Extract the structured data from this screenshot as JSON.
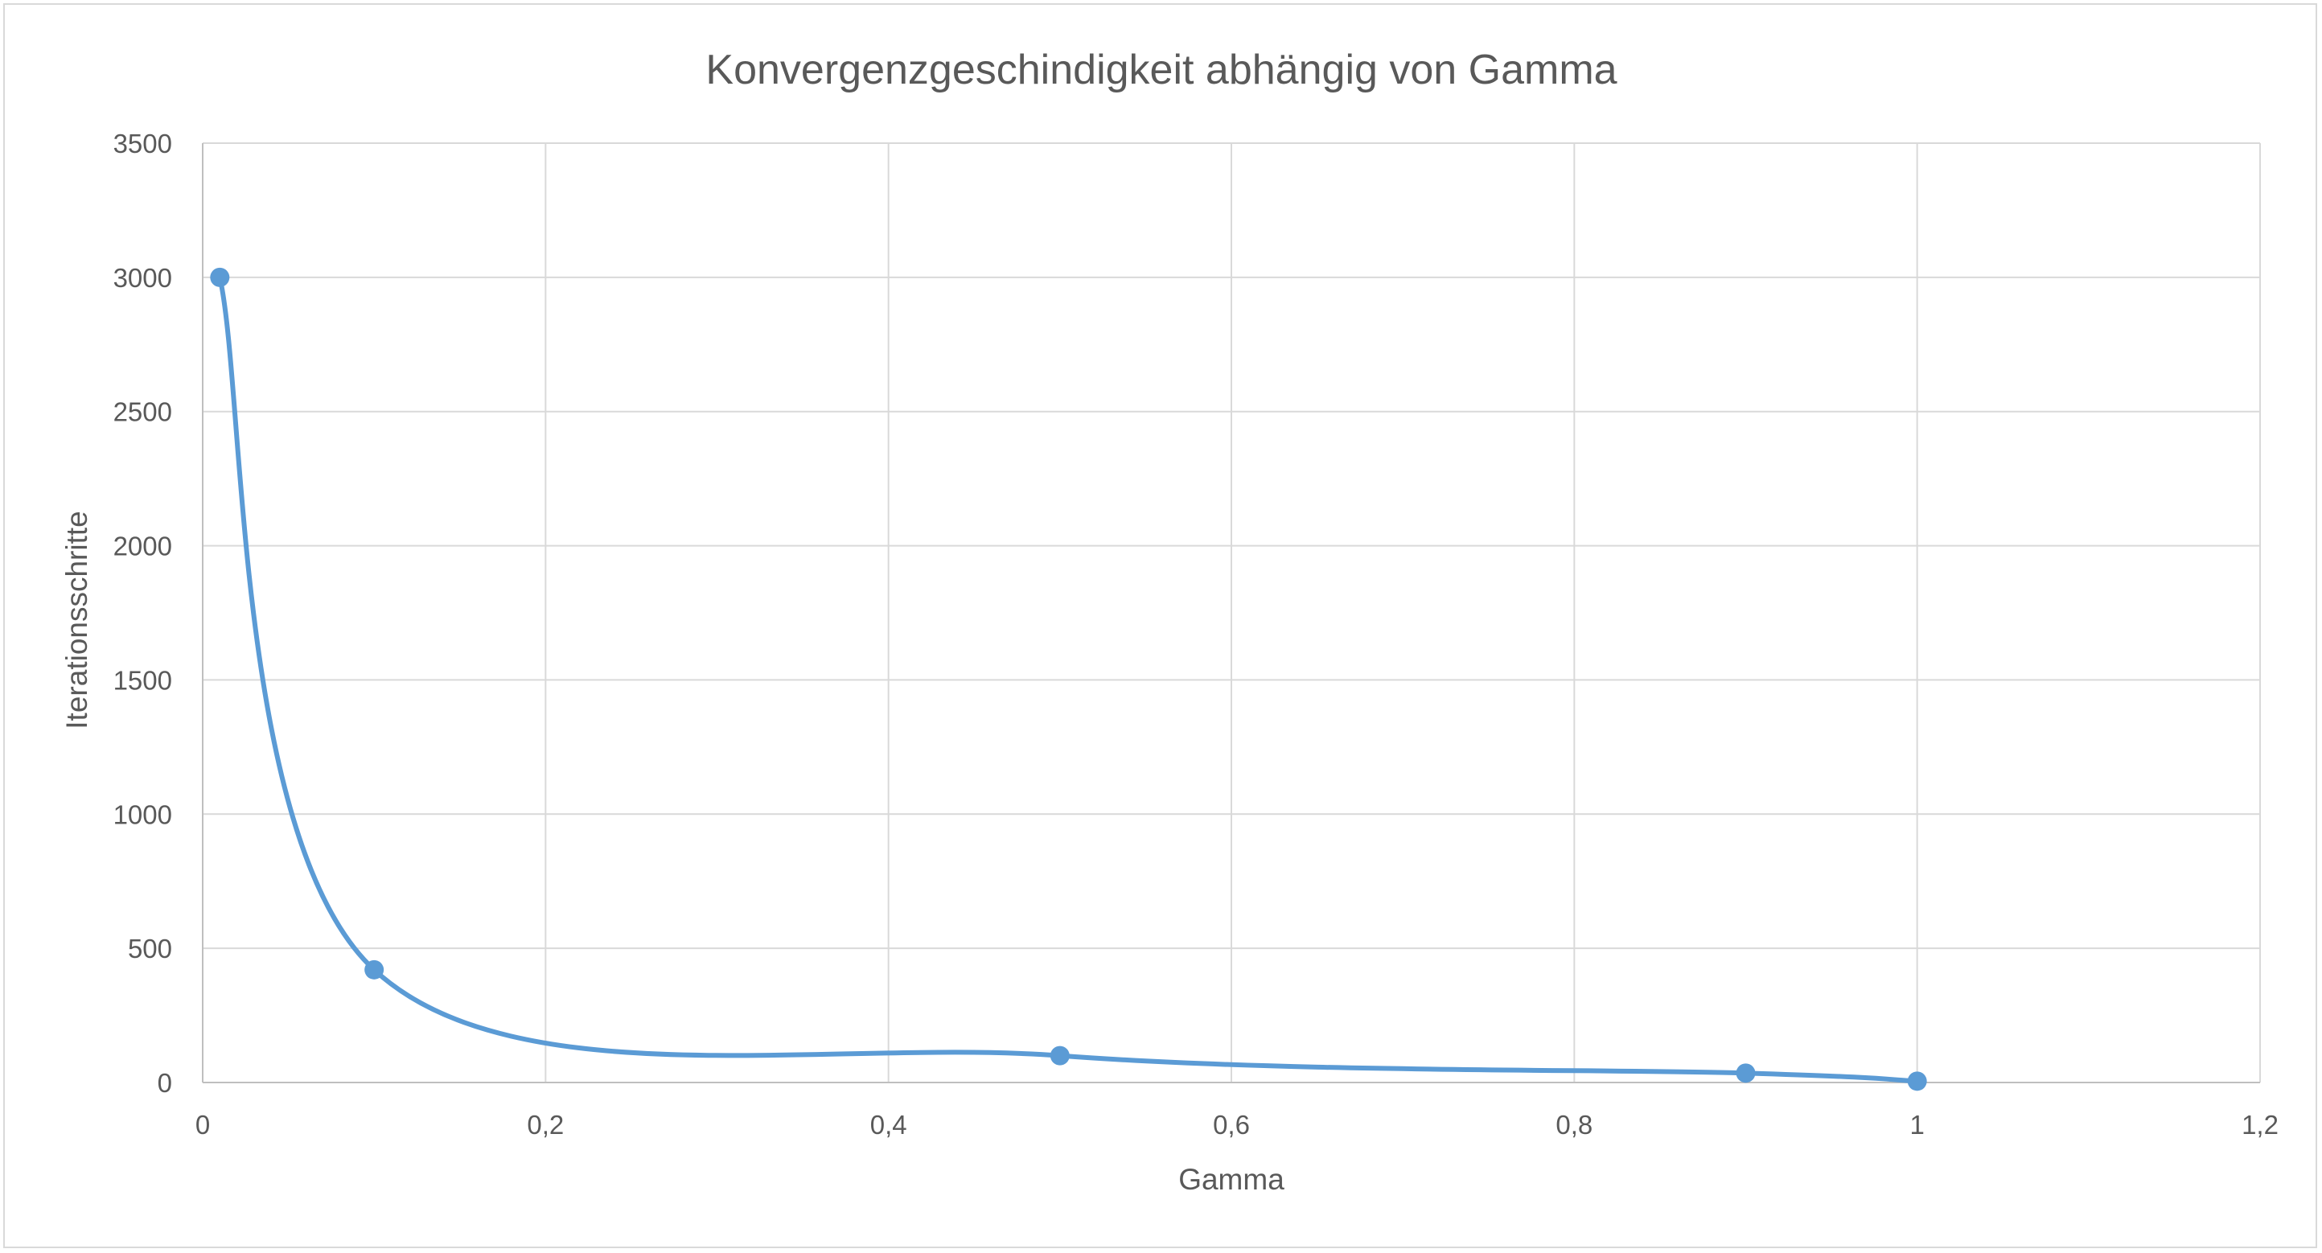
{
  "chart_data": {
    "type": "scatter",
    "title": "Konvergenzgeschindigkeit abhängig von Gamma",
    "xlabel": "Gamma",
    "ylabel": "Iterationsschritte",
    "xlim": [
      0,
      1.2
    ],
    "ylim": [
      0,
      3500
    ],
    "x_ticks": [
      "0",
      "0,2",
      "0,4",
      "0,6",
      "0,8",
      "1",
      "1,2"
    ],
    "y_ticks": [
      "0",
      "500",
      "1000",
      "1500",
      "2000",
      "2500",
      "3000",
      "3500"
    ],
    "grid": true,
    "legend": "none",
    "smooth_line": true,
    "series": [
      {
        "x": [
          0.01,
          0.1,
          0.5,
          0.9,
          1.0
        ],
        "y": [
          3000,
          420,
          100,
          35,
          5
        ],
        "color": "#5b9bd5"
      }
    ]
  }
}
